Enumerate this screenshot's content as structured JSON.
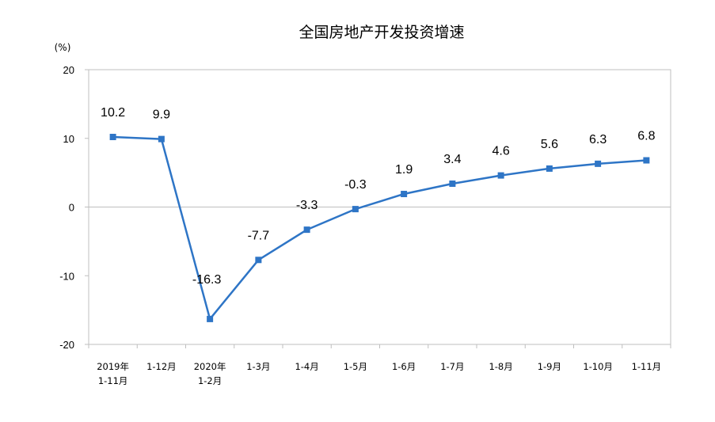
{
  "chart_data": {
    "type": "line",
    "title": "全国房地产开发投资增速",
    "unit_label": "(%)",
    "xlabel": "",
    "ylabel": "",
    "ylim": [
      -20,
      20
    ],
    "yticks": [
      20,
      10,
      0,
      -10,
      -20
    ],
    "grid": false,
    "legend": "none",
    "line_color": "#2e75c6",
    "categories": [
      [
        "2019年",
        "1-11月"
      ],
      [
        "1-12月"
      ],
      [
        "2020年",
        "1-2月"
      ],
      [
        "1-3月"
      ],
      [
        "1-4月"
      ],
      [
        "1-5月"
      ],
      [
        "1-6月"
      ],
      [
        "1-7月"
      ],
      [
        "1-8月"
      ],
      [
        "1-9月"
      ],
      [
        "1-10月"
      ],
      [
        "1-11月"
      ]
    ],
    "values": [
      10.2,
      9.9,
      -16.3,
      -7.7,
      -3.3,
      -0.3,
      1.9,
      3.4,
      4.6,
      5.6,
      6.3,
      6.8
    ],
    "data_labels": [
      "10.2",
      "9.9",
      "-16.3",
      "-7.7",
      "-3.3",
      "-0.3",
      "1.9",
      "3.4",
      "4.6",
      "5.6",
      "6.3",
      "6.8"
    ]
  }
}
